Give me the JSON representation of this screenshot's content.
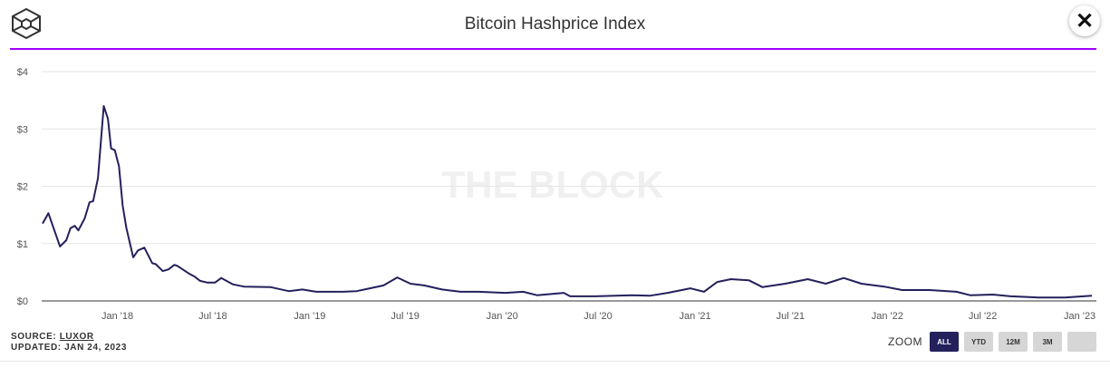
{
  "header": {
    "title": "Bitcoin Hashprice Index",
    "close_icon": "close-icon",
    "logo": "the-block-cube-logo"
  },
  "colors": {
    "line": "#24205c",
    "accent_rule": "#a100ff",
    "grid": "#e6e6e6",
    "active_button": "#24205c"
  },
  "footer": {
    "source_label": "SOURCE:",
    "source_link": "LUXOR",
    "updated": "UPDATED: JAN 24, 2023"
  },
  "zoom": {
    "label": "ZOOM",
    "buttons": [
      "ALL",
      "YTD",
      "12M",
      "3M",
      ""
    ],
    "active": "ALL"
  },
  "chart_data": {
    "type": "line",
    "title": "Bitcoin Hashprice Index",
    "watermark": "THE BLOCK",
    "grid": true,
    "ylim": [
      0,
      4
    ],
    "y_ticks": [
      "$0",
      "$1",
      "$2",
      "$3",
      "$4"
    ],
    "y_tick_values": [
      0,
      1,
      2,
      3,
      4
    ],
    "x_ticks": [
      "Jan '18",
      "Jul '18",
      "Jan '19",
      "Jul '19",
      "Jan '20",
      "Jul '20",
      "Jan '21",
      "Jul '21",
      "Jan '22",
      "Jul '22",
      "Jan '23"
    ],
    "x_tick_dates": [
      "2018-01-01",
      "2018-07-01",
      "2019-01-01",
      "2019-07-01",
      "2020-01-01",
      "2020-07-01",
      "2021-01-01",
      "2021-07-01",
      "2022-01-01",
      "2022-07-01",
      "2023-01-01"
    ],
    "xlim": [
      "2017-08-12",
      "2023-01-24"
    ],
    "series": [
      {
        "points": [
          [
            "2017-08-12",
            1.35
          ],
          [
            "2017-08-23",
            1.53
          ],
          [
            "2017-09-14",
            0.95
          ],
          [
            "2017-09-26",
            1.06
          ],
          [
            "2017-10-04",
            1.27
          ],
          [
            "2017-10-12",
            1.31
          ],
          [
            "2017-10-19",
            1.23
          ],
          [
            "2017-10-31",
            1.44
          ],
          [
            "2017-11-09",
            1.72
          ],
          [
            "2017-11-16",
            1.74
          ],
          [
            "2017-11-25",
            2.14
          ],
          [
            "2017-12-06",
            3.4
          ],
          [
            "2017-12-14",
            3.18
          ],
          [
            "2017-12-20",
            2.66
          ],
          [
            "2017-12-27",
            2.63
          ],
          [
            "2018-01-04",
            2.35
          ],
          [
            "2018-01-11",
            1.66
          ],
          [
            "2018-01-18",
            1.27
          ],
          [
            "2018-01-31",
            0.76
          ],
          [
            "2018-02-09",
            0.88
          ],
          [
            "2018-02-21",
            0.93
          ],
          [
            "2018-03-08",
            0.66
          ],
          [
            "2018-03-15",
            0.64
          ],
          [
            "2018-03-28",
            0.52
          ],
          [
            "2018-04-08",
            0.55
          ],
          [
            "2018-04-19",
            0.63
          ],
          [
            "2018-04-25",
            0.61
          ],
          [
            "2018-05-18",
            0.47
          ],
          [
            "2018-05-28",
            0.42
          ],
          [
            "2018-06-07",
            0.35
          ],
          [
            "2018-06-21",
            0.32
          ],
          [
            "2018-07-05",
            0.32
          ],
          [
            "2018-07-17",
            0.4
          ],
          [
            "2018-08-08",
            0.29
          ],
          [
            "2018-08-29",
            0.25
          ],
          [
            "2018-10-19",
            0.24
          ],
          [
            "2018-11-22",
            0.17
          ],
          [
            "2018-12-18",
            0.2
          ],
          [
            "2019-01-13",
            0.16
          ],
          [
            "2019-03-05",
            0.16
          ],
          [
            "2019-03-31",
            0.17
          ],
          [
            "2019-04-25",
            0.22
          ],
          [
            "2019-05-21",
            0.27
          ],
          [
            "2019-06-16",
            0.41
          ],
          [
            "2019-07-11",
            0.3
          ],
          [
            "2019-08-06",
            0.27
          ],
          [
            "2019-09-09",
            0.2
          ],
          [
            "2019-10-14",
            0.16
          ],
          [
            "2019-11-17",
            0.16
          ],
          [
            "2020-01-07",
            0.14
          ],
          [
            "2020-02-10",
            0.16
          ],
          [
            "2020-03-07",
            0.1
          ],
          [
            "2020-04-27",
            0.14
          ],
          [
            "2020-05-09",
            0.08
          ],
          [
            "2020-06-26",
            0.08
          ],
          [
            "2020-09-03",
            0.1
          ],
          [
            "2020-10-07",
            0.09
          ],
          [
            "2020-11-10",
            0.14
          ],
          [
            "2020-12-23",
            0.22
          ],
          [
            "2021-01-18",
            0.16
          ],
          [
            "2021-02-12",
            0.33
          ],
          [
            "2021-03-10",
            0.38
          ],
          [
            "2021-04-13",
            0.36
          ],
          [
            "2021-05-09",
            0.24
          ],
          [
            "2021-06-21",
            0.3
          ],
          [
            "2021-08-03",
            0.38
          ],
          [
            "2021-09-06",
            0.3
          ],
          [
            "2021-10-10",
            0.4
          ],
          [
            "2021-11-13",
            0.3
          ],
          [
            "2021-12-26",
            0.25
          ],
          [
            "2022-01-29",
            0.19
          ],
          [
            "2022-03-22",
            0.19
          ],
          [
            "2022-05-12",
            0.16
          ],
          [
            "2022-06-07",
            0.1
          ],
          [
            "2022-07-20",
            0.11
          ],
          [
            "2022-08-23",
            0.08
          ],
          [
            "2022-10-13",
            0.06
          ],
          [
            "2022-12-04",
            0.06
          ],
          [
            "2023-01-24",
            0.09
          ]
        ]
      }
    ]
  }
}
